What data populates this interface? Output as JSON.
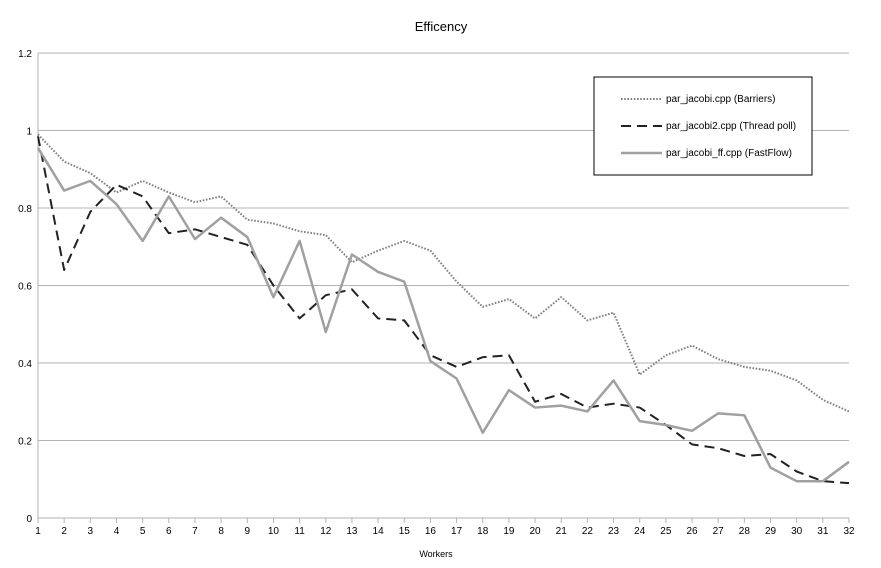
{
  "chart_data": {
    "type": "line",
    "title": "Efficency",
    "xlabel": "Workers",
    "ylabel": "",
    "x": [
      1,
      2,
      3,
      4,
      5,
      6,
      7,
      8,
      9,
      10,
      11,
      12,
      13,
      14,
      15,
      16,
      17,
      18,
      19,
      20,
      21,
      22,
      23,
      24,
      25,
      26,
      27,
      28,
      29,
      30,
      31,
      32
    ],
    "xlim": [
      1,
      32
    ],
    "ylim": [
      0,
      1.2
    ],
    "yticks": [
      "0",
      "0.2",
      "0.4",
      "0.6",
      "0.8",
      "1",
      "1.2"
    ],
    "grid": "horizontal",
    "legend_position": "top-right",
    "series": [
      {
        "name": "par_jacobi.cpp (Barriers)",
        "style": "dotted",
        "color": "#808080",
        "values": [
          0.99,
          0.92,
          0.89,
          0.84,
          0.87,
          0.84,
          0.815,
          0.83,
          0.77,
          0.76,
          0.74,
          0.73,
          0.66,
          0.69,
          0.715,
          0.69,
          0.61,
          0.545,
          0.565,
          0.515,
          0.57,
          0.51,
          0.53,
          0.37,
          0.42,
          0.445,
          0.41,
          0.39,
          0.38,
          0.355,
          0.305,
          0.275
        ]
      },
      {
        "name": "par_jacobi2.cpp (Thread poll)",
        "style": "dashed",
        "color": "#222222",
        "values": [
          0.985,
          0.64,
          0.79,
          0.86,
          0.83,
          0.735,
          0.745,
          0.725,
          0.705,
          0.6,
          0.515,
          0.575,
          0.59,
          0.515,
          0.51,
          0.42,
          0.39,
          0.415,
          0.42,
          0.3,
          0.32,
          0.285,
          0.295,
          0.285,
          0.24,
          0.19,
          0.18,
          0.16,
          0.165,
          0.12,
          0.095,
          0.09
        ]
      },
      {
        "name": "par_jacobi_ff.cpp (FastFlow)",
        "style": "solid",
        "color": "#a0a0a0",
        "values": [
          0.955,
          0.845,
          0.87,
          0.81,
          0.715,
          0.83,
          0.72,
          0.775,
          0.725,
          0.57,
          0.715,
          0.48,
          0.68,
          0.635,
          0.61,
          0.405,
          0.36,
          0.22,
          0.33,
          0.285,
          0.29,
          0.275,
          0.355,
          0.25,
          0.24,
          0.225,
          0.27,
          0.265,
          0.13,
          0.095,
          0.095,
          0.145
        ]
      }
    ]
  }
}
